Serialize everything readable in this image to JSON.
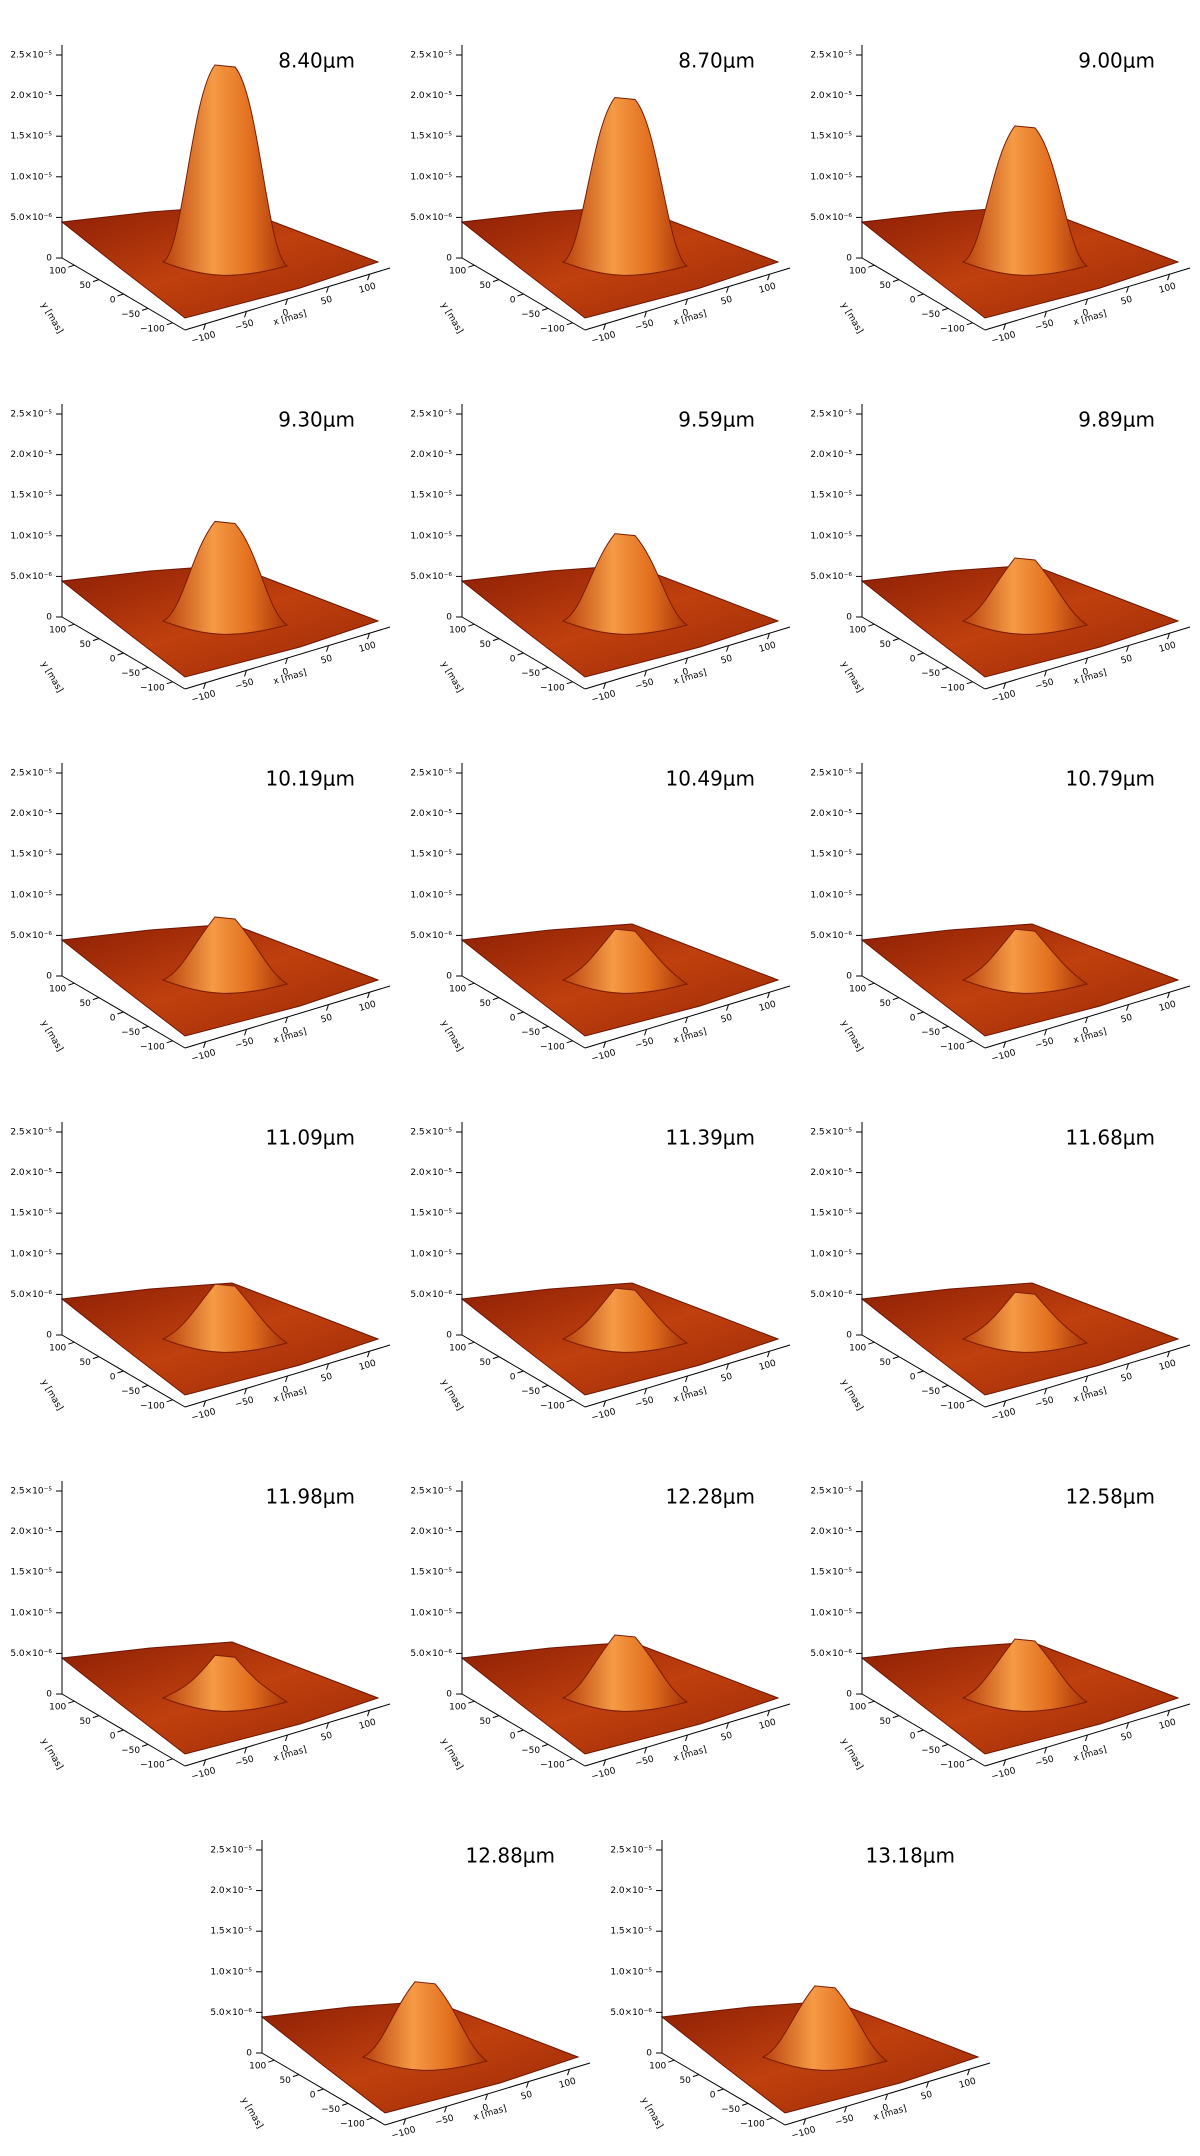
{
  "axes": {
    "zlim": [
      0,
      2.5e-05
    ],
    "zticks": [
      {
        "value": 0,
        "label": "0"
      },
      {
        "value": 5e-06,
        "label": "5.0×10⁻⁶"
      },
      {
        "value": 1e-05,
        "label": "1.0×10⁻⁵"
      },
      {
        "value": 1.5e-05,
        "label": "1.5×10⁻⁵"
      },
      {
        "value": 2e-05,
        "label": "2.0×10⁻⁵"
      },
      {
        "value": 2.5e-05,
        "label": "2.5×10⁻⁵"
      }
    ],
    "xlim": [
      -100,
      100
    ],
    "xticks": [
      {
        "value": -100,
        "label": "−100"
      },
      {
        "value": -50,
        "label": "−50"
      },
      0,
      50,
      100
    ],
    "ylim": [
      -100,
      100
    ],
    "yticks": [
      100,
      50,
      0,
      {
        "value": -50,
        "label": "−50"
      },
      {
        "value": -100,
        "label": "−100"
      }
    ],
    "x_label": "x [mas]",
    "y_label": "y [mas]"
  },
  "panels": [
    {
      "label": "8.40μm",
      "peak": 2.5e-05
    },
    {
      "label": "8.70μm",
      "peak": 2.1e-05
    },
    {
      "label": "9.00μm",
      "peak": 1.75e-05
    },
    {
      "label": "9.30μm",
      "peak": 1.3e-05
    },
    {
      "label": "9.59μm",
      "peak": 1.15e-05
    },
    {
      "label": "9.89μm",
      "peak": 8.5e-06
    },
    {
      "label": "10.19μm",
      "peak": 8.5e-06
    },
    {
      "label": "10.49μm",
      "peak": 7e-06
    },
    {
      "label": "10.79μm",
      "peak": 7e-06
    },
    {
      "label": "11.09μm",
      "peak": 7.5e-06
    },
    {
      "label": "11.39μm",
      "peak": 7e-06
    },
    {
      "label": "11.68μm",
      "peak": 6.5e-06
    },
    {
      "label": "11.98μm",
      "peak": 6e-06
    },
    {
      "label": "12.28μm",
      "peak": 8.5e-06
    },
    {
      "label": "12.58μm",
      "peak": 8e-06
    },
    {
      "label": "12.88μm",
      "peak": 1e-05
    },
    {
      "label": "13.18μm",
      "peak": 9.5e-06
    }
  ]
}
